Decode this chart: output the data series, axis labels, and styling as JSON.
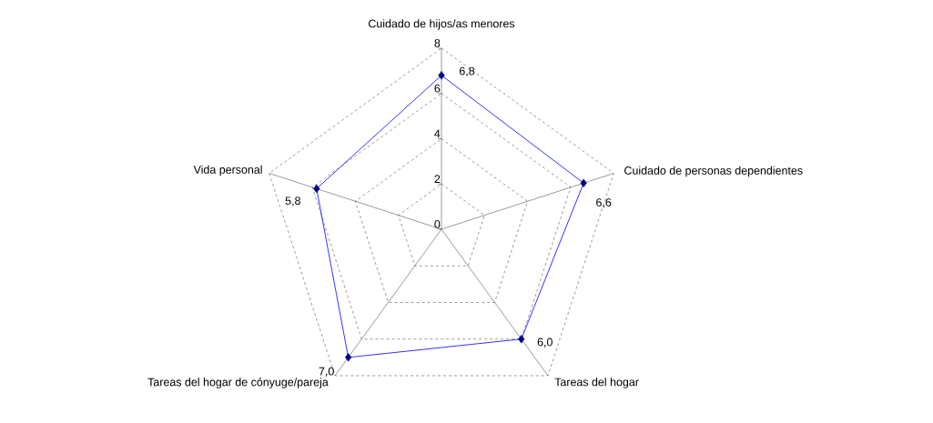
{
  "chart_data": {
    "type": "radar",
    "categories": [
      "Cuidado de hijos/as menores",
      "Cuidado de personas dependientes",
      "Tareas del hogar",
      "Tareas del hogar de cónyuge/pareja",
      "Vida personal"
    ],
    "series": [
      {
        "color": "#0000ff",
        "values": [
          6.8,
          6.6,
          6.0,
          7.0,
          5.8
        ],
        "value_labels": [
          "6,8",
          "6,6",
          "6,0",
          "7,0",
          "5,8"
        ]
      }
    ],
    "ylim": [
      0,
      8
    ],
    "yticks": [
      0,
      2,
      4,
      6,
      8
    ],
    "grid": true,
    "marker": "diamond",
    "line_style": "solid"
  }
}
